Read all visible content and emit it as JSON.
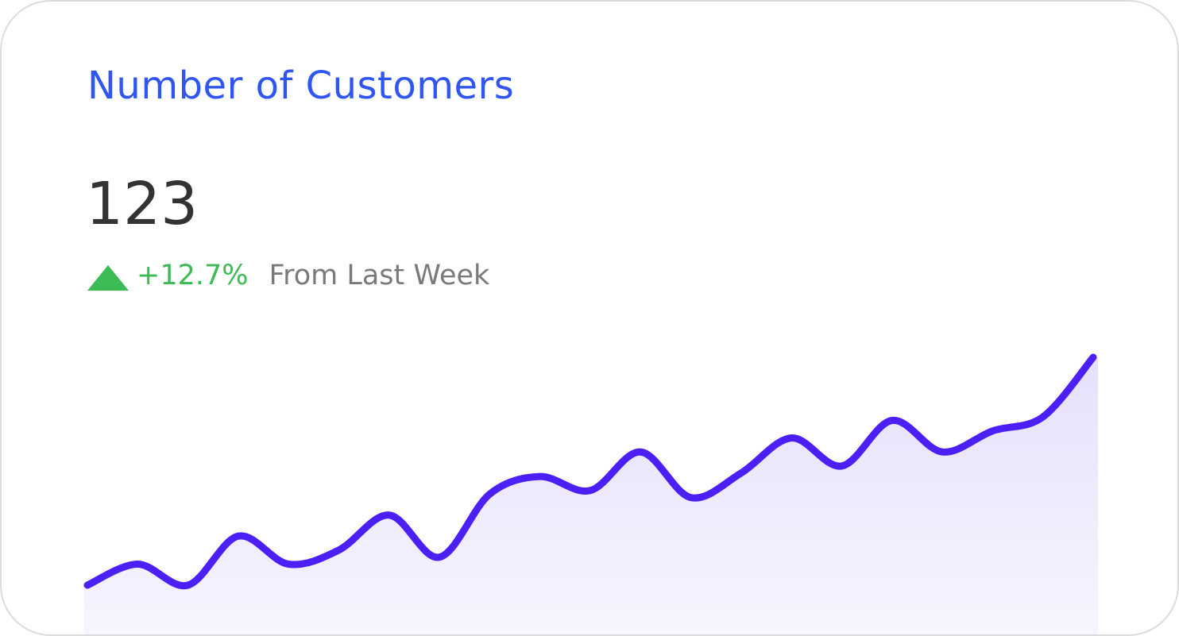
{
  "card": {
    "title": "Number of Customers",
    "value": "123",
    "change": {
      "icon": "triangle-up-icon",
      "value": "+12.7%",
      "label": "From Last Week",
      "color": "#3cba54"
    }
  },
  "colors": {
    "title": "#2f55f2",
    "line": "#4b1ff5",
    "fill": "#ebe7fb"
  },
  "chart_data": {
    "type": "area",
    "title": "",
    "xlabel": "",
    "ylabel": "",
    "grid": false,
    "axes_visible": false,
    "series": [
      {
        "values": [
          34,
          40,
          34,
          48,
          40,
          44,
          54,
          42,
          60,
          65,
          61,
          72,
          59,
          66,
          76,
          68,
          81,
          72,
          78,
          82,
          99
        ]
      }
    ]
  }
}
